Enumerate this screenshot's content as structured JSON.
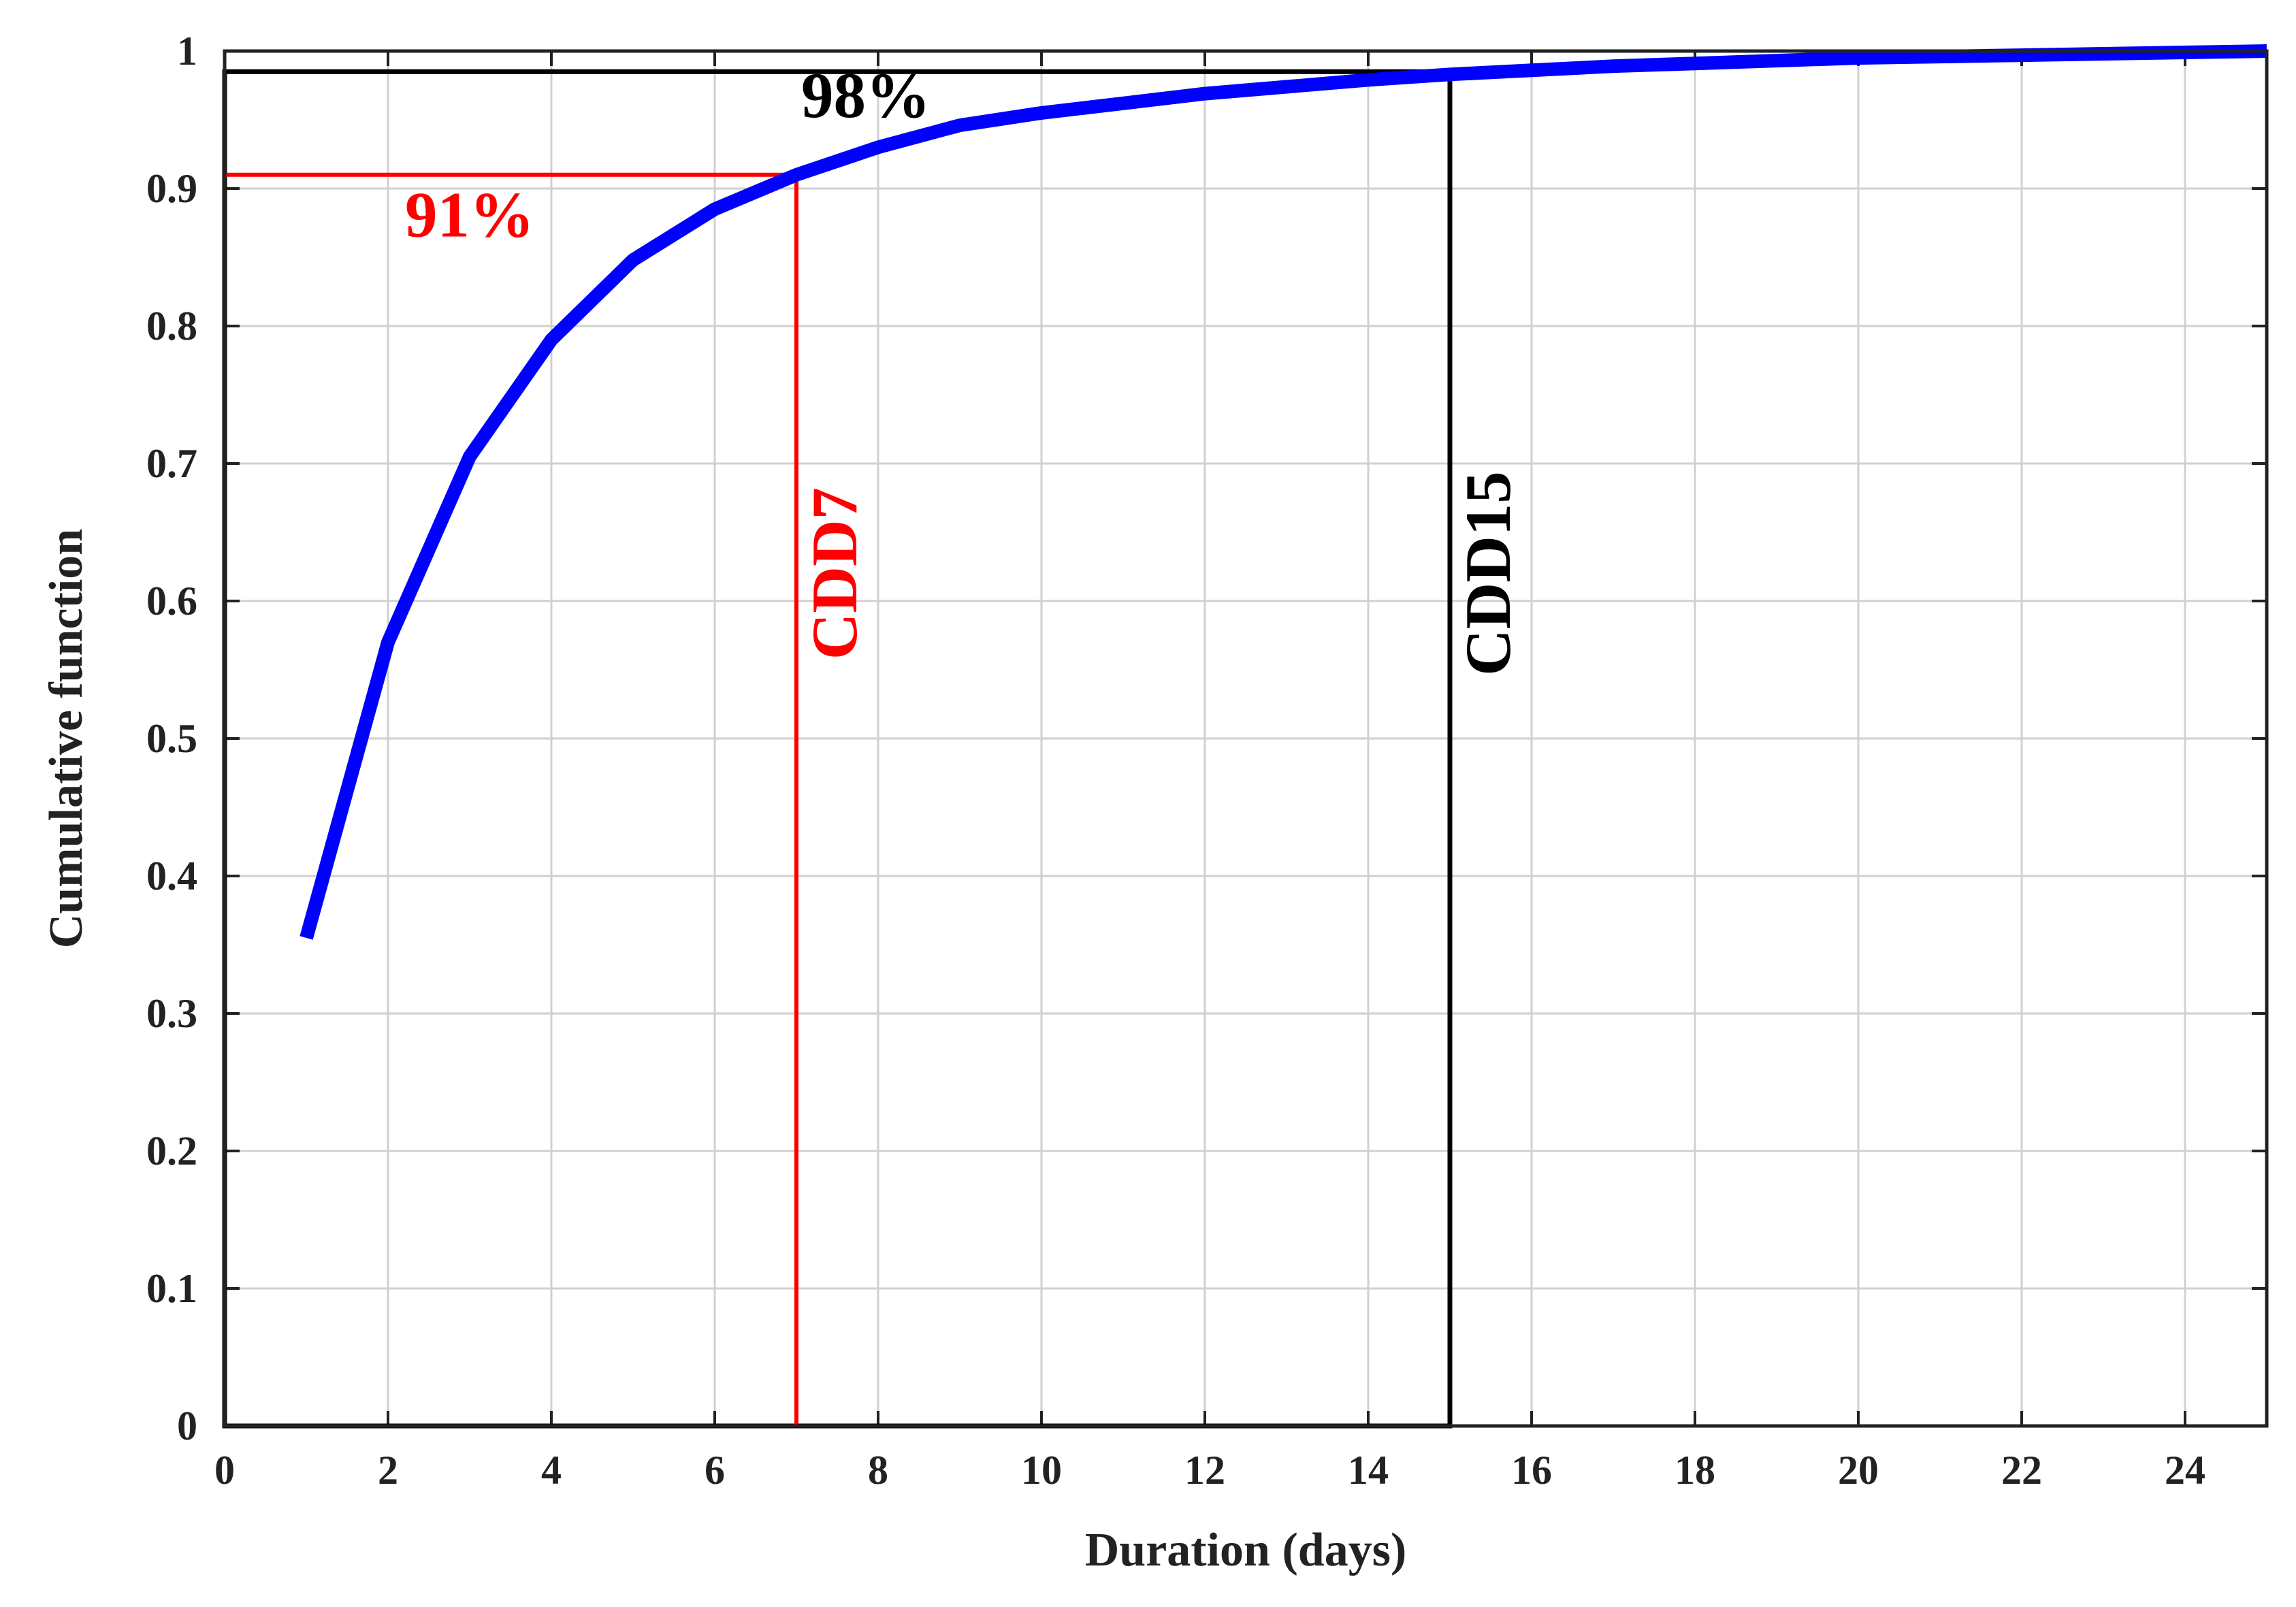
{
  "chart_data": {
    "type": "line",
    "title": "",
    "xlabel": "Duration (days)",
    "ylabel": "Cumulative function",
    "xlim": [
      0,
      25
    ],
    "ylim": [
      0,
      1
    ],
    "xticks": [
      0,
      2,
      4,
      6,
      8,
      10,
      12,
      14,
      16,
      18,
      20,
      22,
      24
    ],
    "yticks": [
      0,
      0.1,
      0.2,
      0.3,
      0.4,
      0.5,
      0.6,
      0.7,
      0.8,
      0.9,
      1
    ],
    "ytick_labels": [
      "0",
      "0.1",
      "0.2",
      "0.3",
      "0.4",
      "0.5",
      "0.6",
      "0.7",
      "0.8",
      "0.9",
      "1"
    ],
    "grid": true,
    "series": [
      {
        "color": "#0000ff",
        "x": [
          1,
          2,
          3,
          4,
          5,
          6,
          7,
          8,
          9,
          10,
          11,
          12,
          13,
          14,
          15,
          16,
          17,
          18,
          19,
          20,
          21,
          22,
          23,
          24,
          25
        ],
        "y": [
          0.355,
          0.57,
          0.705,
          0.79,
          0.848,
          0.885,
          0.91,
          0.93,
          0.946,
          0.955,
          0.962,
          0.969,
          0.974,
          0.979,
          0.983,
          0.986,
          0.989,
          0.991,
          0.993,
          0.995,
          0.996,
          0.997,
          0.998,
          0.999,
          1.0
        ]
      }
    ],
    "annotations": [
      {
        "label": "91%",
        "vertical_label": "CDD7",
        "x": 7,
        "y": 0.91,
        "color": "#ff0000"
      },
      {
        "label": "98%",
        "vertical_label": "CDD15",
        "x": 15,
        "y": 0.985,
        "color": "#000000"
      }
    ]
  }
}
